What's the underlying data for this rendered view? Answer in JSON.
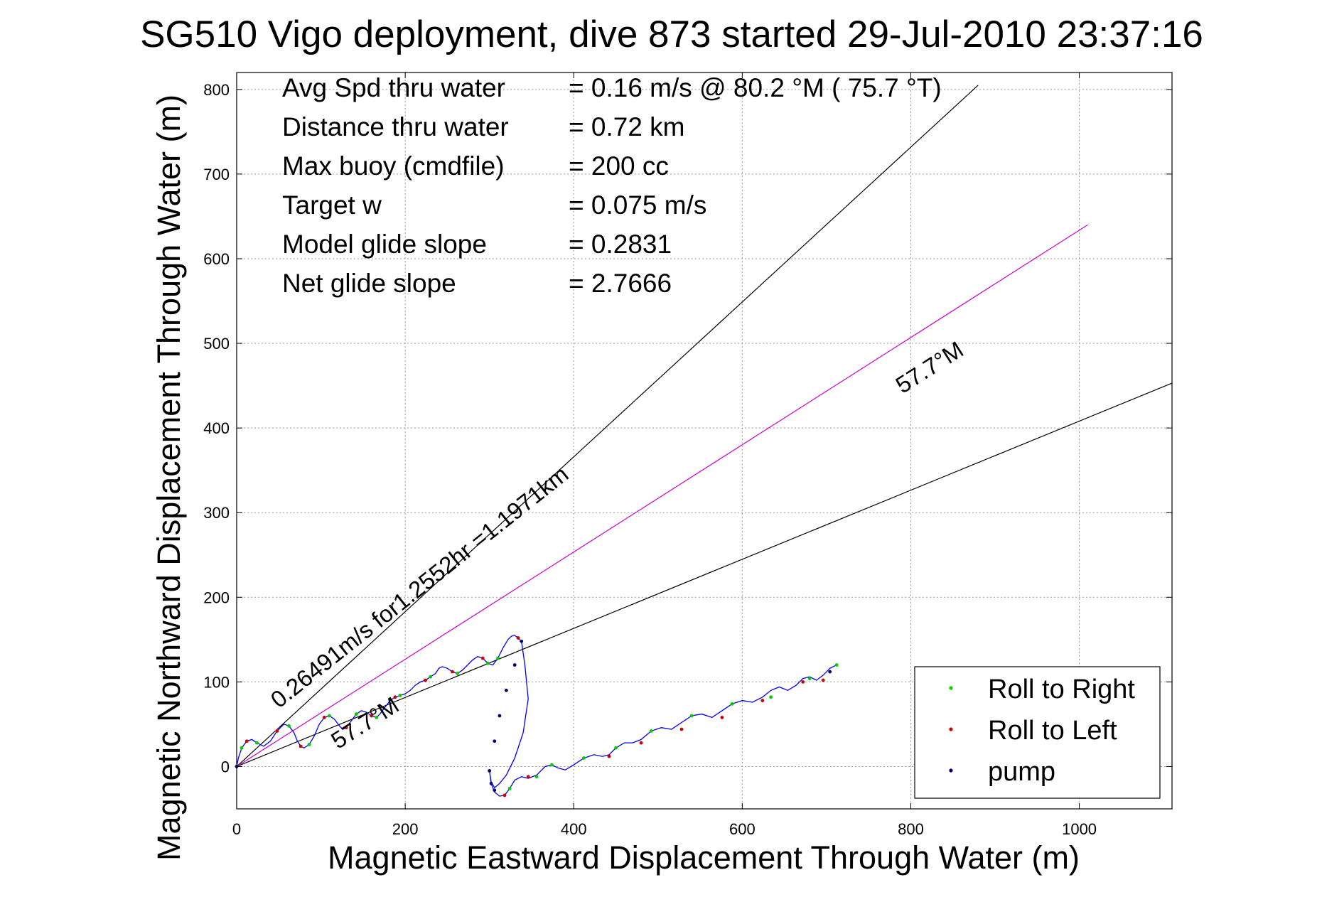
{
  "chart_data": {
    "type": "line",
    "title": "SG510 Vigo deployment, dive 873 started 29-Jul-2010 23:37:16",
    "xlabel": "Magnetic Eastward Displacement Through Water (m)",
    "ylabel": "Magnetic Northward Displacement Through Water (m)",
    "xlim": [
      0,
      1110
    ],
    "ylim": [
      -50,
      820
    ],
    "xticks": [
      "0",
      "200",
      "400",
      "600",
      "800",
      "1000"
    ],
    "yticks": [
      "0",
      "100",
      "200",
      "300",
      "400",
      "500",
      "600",
      "700",
      "800"
    ],
    "grid": true,
    "info": [
      {
        "label": "Avg Spd thru water",
        "value": "=  0.16 m/s @  80.2 °M ( 75.7 °T)"
      },
      {
        "label": "Distance thru water",
        "value": "=  0.72 km"
      },
      {
        "label": "Max buoy (cmdfile)",
        "value": "= 200 cc"
      },
      {
        "label": "Target w",
        "value": "= 0.075 m/s"
      },
      {
        "label": "Model glide slope",
        "value": "= 0.2831"
      },
      {
        "label": "Net glide slope",
        "value": "= 2.7666"
      }
    ],
    "annotations": {
      "current_label": "0.26491m/s for1.2552hr =1.1971km",
      "heading_label_upper": "57.7°M",
      "heading_label_lower": "57.7°M"
    },
    "reference_lines": {
      "current": {
        "color": "#cc00cc",
        "x": [
          0,
          1010
        ],
        "y": [
          0,
          640
        ]
      },
      "envelope_upper": {
        "color": "#000000",
        "x": [
          0,
          880
        ],
        "y": [
          0,
          805
        ]
      },
      "envelope_lower": {
        "color": "#000000",
        "x": [
          0,
          1110
        ],
        "y": [
          0,
          453
        ]
      }
    },
    "track": {
      "color": "#0000ff",
      "x": [
        0,
        2,
        6,
        12,
        18,
        24,
        32,
        40,
        48,
        56,
        62,
        68,
        72,
        76,
        80,
        86,
        92,
        98,
        104,
        110,
        116,
        122,
        126,
        130,
        136,
        142,
        148,
        154,
        160,
        166,
        170,
        176,
        182,
        188,
        194,
        200,
        206,
        212,
        218,
        224,
        230,
        236,
        240,
        244,
        250,
        256,
        262,
        268,
        274,
        280,
        286,
        292,
        298,
        304,
        310,
        316,
        322,
        326,
        330,
        334,
        338,
        342,
        346,
        340,
        330,
        320,
        312,
        306,
        302,
        300,
        302,
        306,
        312,
        318,
        324,
        330,
        338,
        346,
        356,
        366,
        374,
        382,
        390,
        400,
        412,
        424,
        434,
        442,
        450,
        460,
        470,
        480,
        492,
        504,
        516,
        528,
        540,
        552,
        564,
        576,
        588,
        600,
        612,
        624,
        634,
        644,
        654,
        664,
        672,
        680,
        688,
        696,
        704,
        712
      ],
      "y": [
        0,
        10,
        22,
        30,
        32,
        28,
        24,
        30,
        42,
        50,
        48,
        40,
        30,
        24,
        22,
        26,
        36,
        50,
        58,
        60,
        56,
        48,
        44,
        46,
        54,
        62,
        66,
        64,
        60,
        58,
        62,
        70,
        78,
        82,
        84,
        86,
        90,
        96,
        100,
        102,
        106,
        110,
        116,
        118,
        116,
        112,
        110,
        114,
        120,
        126,
        130,
        128,
        122,
        120,
        128,
        140,
        150,
        154,
        155,
        152,
        148,
        120,
        80,
        40,
        10,
        -10,
        -20,
        -25,
        -18,
        -5,
        -20,
        -30,
        -35,
        -34,
        -26,
        -16,
        -12,
        -14,
        -10,
        0,
        2,
        -2,
        -4,
        2,
        10,
        14,
        12,
        14,
        22,
        28,
        28,
        32,
        42,
        46,
        44,
        52,
        60,
        62,
        58,
        66,
        74,
        78,
        76,
        82,
        90,
        94,
        90,
        96,
        104,
        106,
        102,
        108,
        116,
        120
      ]
    },
    "markers": [
      {
        "name": "Roll to Right",
        "color": "#00cc00"
      },
      {
        "name": "Roll to Left",
        "color": "#cc0000"
      },
      {
        "name": "pump",
        "color": "#000066"
      }
    ],
    "marker_points": {
      "right": [
        [
          6,
          22
        ],
        [
          24,
          28
        ],
        [
          62,
          48
        ],
        [
          86,
          26
        ],
        [
          110,
          60
        ],
        [
          142,
          62
        ],
        [
          166,
          58
        ],
        [
          194,
          84
        ],
        [
          230,
          106
        ],
        [
          262,
          110
        ],
        [
          298,
          122
        ],
        [
          310,
          128
        ],
        [
          412,
          10
        ],
        [
          450,
          22
        ],
        [
          492,
          42
        ],
        [
          540,
          60
        ],
        [
          588,
          74
        ],
        [
          634,
          82
        ],
        [
          680,
          104
        ],
        [
          712,
          120
        ],
        [
          356,
          -12
        ],
        [
          324,
          -26
        ],
        [
          374,
          2
        ]
      ],
      "left": [
        [
          12,
          30
        ],
        [
          48,
          42
        ],
        [
          76,
          24
        ],
        [
          104,
          58
        ],
        [
          130,
          46
        ],
        [
          160,
          60
        ],
        [
          188,
          82
        ],
        [
          224,
          102
        ],
        [
          256,
          112
        ],
        [
          292,
          128
        ],
        [
          334,
          152
        ],
        [
          318,
          -34
        ],
        [
          346,
          -12
        ],
        [
          442,
          12
        ],
        [
          480,
          28
        ],
        [
          528,
          44
        ],
        [
          576,
          58
        ],
        [
          624,
          78
        ],
        [
          672,
          100
        ],
        [
          696,
          102
        ]
      ],
      "pump": [
        [
          0,
          0
        ],
        [
          300,
          -5
        ],
        [
          302,
          -20
        ],
        [
          306,
          -28
        ],
        [
          338,
          148
        ],
        [
          330,
          120
        ],
        [
          320,
          90
        ],
        [
          312,
          60
        ],
        [
          306,
          30
        ],
        [
          704,
          112
        ]
      ]
    },
    "legend": {
      "position": "bottom-right",
      "entries": [
        "Roll to Right",
        "Roll to Left",
        "pump"
      ]
    }
  }
}
